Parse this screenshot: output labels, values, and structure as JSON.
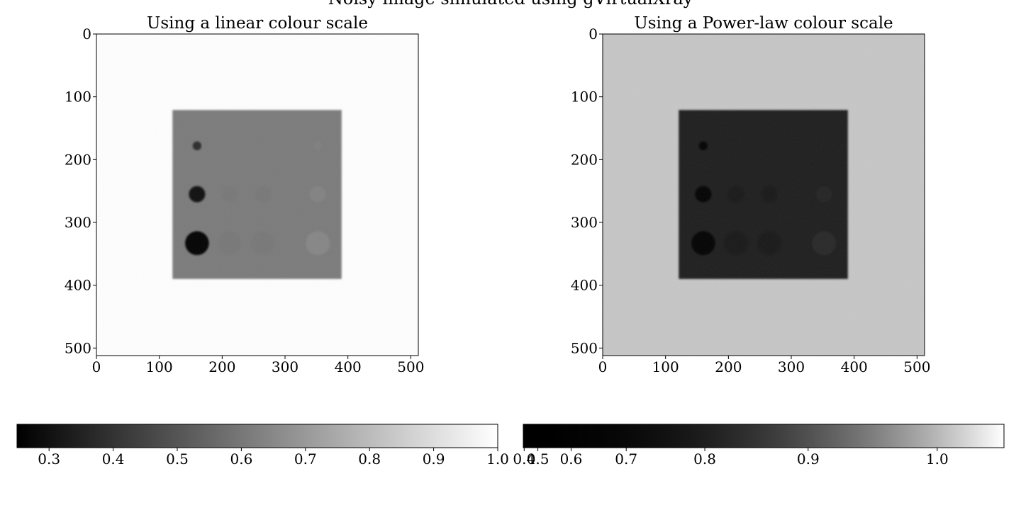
{
  "suptitle": "Noisy image simulated using gVirtualXray",
  "chart_data": [
    {
      "type": "heatmap",
      "title": "Using a linear colour scale",
      "colour_scale": "linear",
      "colormap": "gray",
      "xlim": [
        0,
        512
      ],
      "ylim": [
        512,
        0
      ],
      "xticks": [
        0,
        100,
        200,
        300,
        400,
        500
      ],
      "yticks": [
        0,
        100,
        200,
        300,
        400,
        500
      ],
      "colorbar": {
        "range": [
          0.25,
          1.0
        ],
        "ticks": [
          0.3,
          0.4,
          0.5,
          0.6,
          0.7,
          0.8,
          0.9,
          1.0
        ],
        "tick_labels": [
          "0.3",
          "0.4",
          "0.5",
          "0.6",
          "0.7",
          "0.8",
          "0.9",
          "1.0"
        ],
        "orientation": "horizontal",
        "placement": "bottom"
      },
      "image": {
        "background_value": 1.0,
        "square": {
          "x0": 121,
          "x1": 390,
          "y0": 121,
          "y1": 390,
          "value": 0.61
        },
        "inserts": [
          {
            "x": 160,
            "y": 178,
            "r": 7,
            "value": 0.38
          },
          {
            "x": 160,
            "y": 255,
            "r": 13,
            "value": 0.3
          },
          {
            "x": 160,
            "y": 333,
            "r": 19,
            "value": 0.25
          },
          {
            "x": 212,
            "y": 255,
            "r": 13,
            "value": 0.6
          },
          {
            "x": 212,
            "y": 333,
            "r": 19,
            "value": 0.6
          },
          {
            "x": 265,
            "y": 255,
            "r": 13,
            "value": 0.6
          },
          {
            "x": 265,
            "y": 333,
            "r": 19,
            "value": 0.6
          },
          {
            "x": 352,
            "y": 178,
            "r": 7,
            "value": 0.62
          },
          {
            "x": 352,
            "y": 255,
            "r": 13,
            "value": 0.63
          },
          {
            "x": 352,
            "y": 333,
            "r": 19,
            "value": 0.64
          }
        ]
      }
    },
    {
      "type": "heatmap",
      "title": "Using a Power-law colour scale",
      "colour_scale": "power-law",
      "colormap": "gray",
      "xlim": [
        0,
        512
      ],
      "ylim": [
        512,
        0
      ],
      "xticks": [
        0,
        100,
        200,
        300,
        400,
        500
      ],
      "yticks": [
        0,
        100,
        200,
        300,
        400,
        500
      ],
      "colorbar": {
        "range": [
          0.36,
          1.045
        ],
        "ticks": [
          0.4,
          0.5,
          0.6,
          0.7,
          0.8,
          0.9,
          1.0
        ],
        "tick_labels": [
          "0.4",
          "0.5",
          "0.6",
          "0.7",
          "0.8",
          "0.9",
          "1.0"
        ],
        "orientation": "horizontal",
        "placement": "bottom"
      },
      "image": {
        "background_value": 0.97,
        "square": {
          "x0": 121,
          "x1": 390,
          "y0": 121,
          "y1": 390,
          "value": 0.61
        },
        "inserts": [
          {
            "x": 160,
            "y": 178,
            "r": 7,
            "value": 0.42
          },
          {
            "x": 160,
            "y": 255,
            "r": 13,
            "value": 0.38
          },
          {
            "x": 160,
            "y": 333,
            "r": 19,
            "value": 0.36
          },
          {
            "x": 212,
            "y": 255,
            "r": 13,
            "value": 0.6
          },
          {
            "x": 212,
            "y": 333,
            "r": 19,
            "value": 0.6
          },
          {
            "x": 265,
            "y": 255,
            "r": 13,
            "value": 0.6
          },
          {
            "x": 265,
            "y": 333,
            "r": 19,
            "value": 0.6
          },
          {
            "x": 352,
            "y": 178,
            "r": 7,
            "value": 0.62
          },
          {
            "x": 352,
            "y": 255,
            "r": 13,
            "value": 0.64
          },
          {
            "x": 352,
            "y": 333,
            "r": 19,
            "value": 0.65
          }
        ]
      }
    }
  ]
}
